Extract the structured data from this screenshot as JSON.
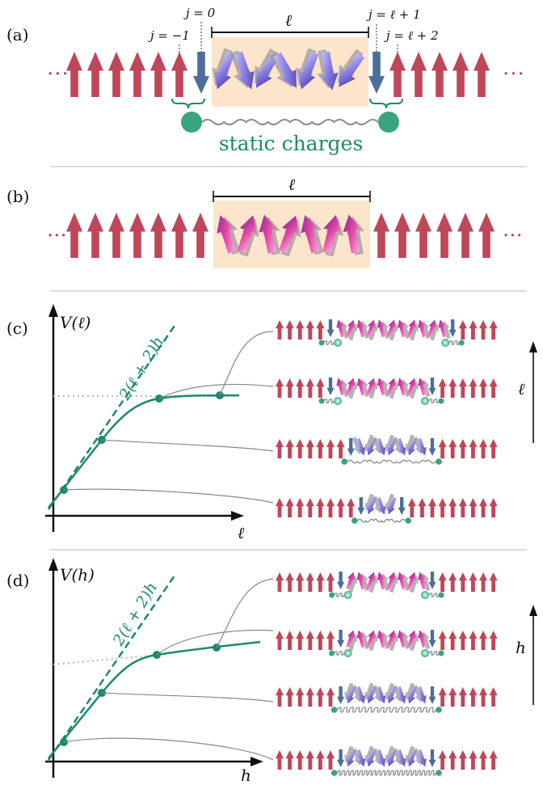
{
  "panels": {
    "a": {
      "label": "(a)",
      "ell": "ℓ",
      "j_minus1": "j = −1",
      "j_0": "j = 0",
      "j_ellp1": "j = ℓ + 1",
      "j_ellp2": "j = ℓ + 2",
      "static_charges": "static charges"
    },
    "b": {
      "label": "(b)",
      "ell": "ℓ"
    },
    "c": {
      "label": "(c)",
      "y_axis": "V(ℓ)",
      "x_axis": "ℓ",
      "asymptote": "2(ℓ + 2)h",
      "side_arrow_label": "ℓ"
    },
    "d": {
      "label": "(d)",
      "y_axis": "V(h)",
      "x_axis": "h",
      "asymptote": "2(ℓ + 2)h",
      "side_arrow_label": "h"
    }
  },
  "colors": {
    "up_spin": "#c0465a",
    "down_spin": "#4d6e99",
    "charge": "#3aa37f",
    "curve": "#1c8a6a",
    "region": "#fde5cc",
    "separator": "#bbbbbb"
  }
}
